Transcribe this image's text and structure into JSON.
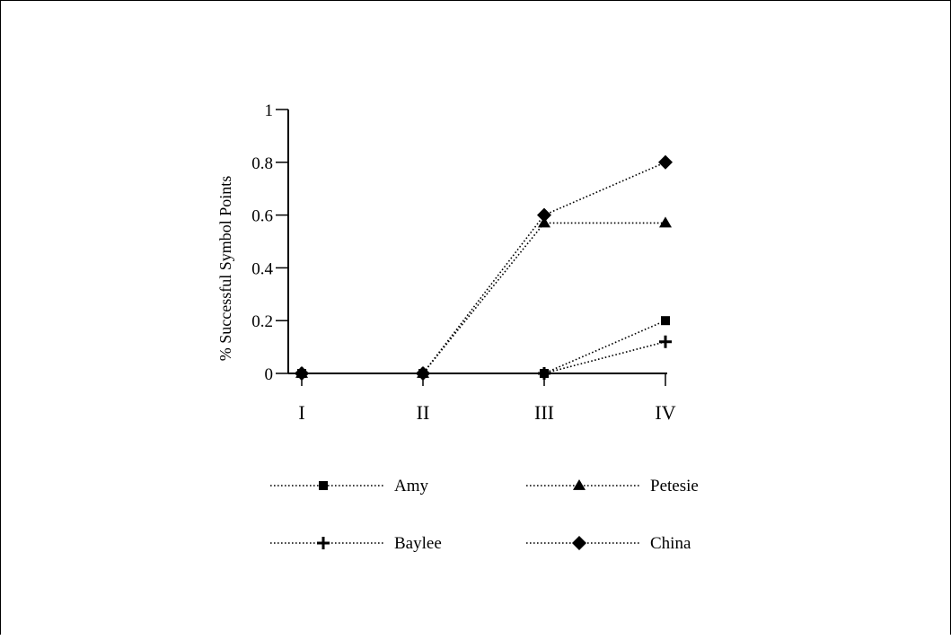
{
  "chart_data": {
    "type": "line",
    "title": "",
    "xlabel": "",
    "ylabel": "% Successful Symbol Points",
    "categories": [
      "I",
      "II",
      "III",
      "IV"
    ],
    "ylim": [
      0,
      1
    ],
    "yticks": [
      0,
      0.2,
      0.4,
      0.6,
      0.8,
      1
    ],
    "ytick_labels": [
      "0",
      "0.2",
      "0.4",
      "0.6",
      "0.8",
      "1"
    ],
    "grid": false,
    "legend_position": "bottom",
    "line_style": "dotted",
    "series": [
      {
        "name": "Amy",
        "marker": "square",
        "values": [
          0.0,
          0.0,
          0.0,
          0.2
        ]
      },
      {
        "name": "Petesie",
        "marker": "triangle",
        "values": [
          0.0,
          0.0,
          0.57,
          0.57
        ]
      },
      {
        "name": "Baylee",
        "marker": "plus",
        "values": [
          0.0,
          0.0,
          0.0,
          0.12
        ]
      },
      {
        "name": "China",
        "marker": "diamond",
        "values": [
          0.0,
          0.0,
          0.6,
          0.8
        ]
      }
    ],
    "colors": {
      "line": "#000000",
      "marker": "#000000"
    }
  }
}
